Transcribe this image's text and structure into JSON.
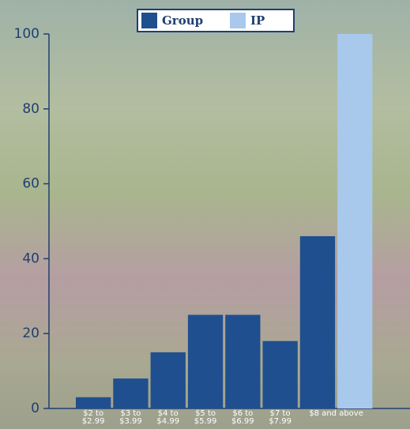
{
  "chart_data": {
    "type": "bar",
    "categories": [
      "$2 to $2.99",
      "$3 to $3.99",
      "$4 to $4.99",
      "$5 to $5.99",
      "$6 to $6.99",
      "$7 to $7.99",
      "$8 and above"
    ],
    "series": [
      {
        "name": "Group",
        "color": "#1f4f8e",
        "values": [
          3,
          8,
          15,
          25,
          25,
          18,
          46
        ]
      },
      {
        "name": "IP",
        "color": "#a8c9ec",
        "values": [
          null,
          null,
          null,
          null,
          null,
          null,
          100
        ]
      }
    ],
    "ylim": [
      0,
      100
    ],
    "yticks": [
      0,
      20,
      40,
      60,
      80,
      100
    ],
    "grid": false,
    "legend": "top"
  }
}
